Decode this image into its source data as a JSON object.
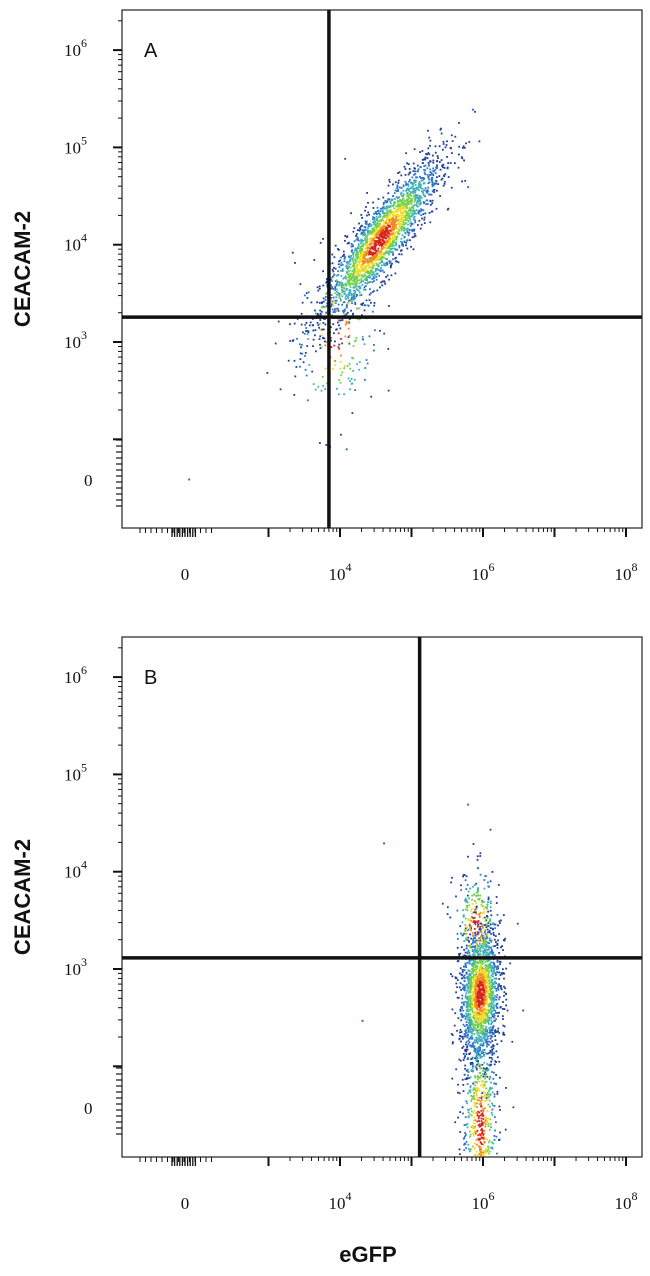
{
  "chart_data": [
    {
      "type": "scatter",
      "panel_label": "A",
      "xlabel": "",
      "ylabel": "CEACAM-2",
      "x_scale": "biexponential",
      "y_scale": "biexponential",
      "x_ticks": [
        {
          "value": 0,
          "base": "0",
          "exp": ""
        },
        {
          "value": 10000,
          "base": "10",
          "exp": "4"
        },
        {
          "value": 1000000,
          "base": "10",
          "exp": "6"
        },
        {
          "value": 100000000,
          "base": "10",
          "exp": "8"
        }
      ],
      "y_ticks": [
        {
          "value": 0,
          "base": "0",
          "exp": ""
        },
        {
          "value": 1000,
          "base": "10",
          "exp": "3"
        },
        {
          "value": 10000,
          "base": "10",
          "exp": "4"
        },
        {
          "value": 100000,
          "base": "10",
          "exp": "5"
        },
        {
          "value": 1000000,
          "base": "10",
          "exp": "6"
        }
      ],
      "gates": {
        "x": 7000,
        "y": 1800
      },
      "populations": [
        {
          "n": 2200,
          "cx": 4.55,
          "cy": 4.05,
          "sx": 0.42,
          "sy": 0.42,
          "corr": 0.88
        },
        {
          "n": 180,
          "cx": 3.95,
          "cy": 3.1,
          "sx": 0.3,
          "sy": 0.5,
          "corr": 0.2
        }
      ],
      "outliers": [
        [
          60,
          4.9
        ],
        [
          700000,
          250000
        ],
        [
          12000,
          100
        ],
        [
          600000,
          40000
        ]
      ],
      "grid": false,
      "legend": "none",
      "colors": [
        "#1f3d99",
        "#2e74c9",
        "#3fb0b8",
        "#72d14a",
        "#f2dc22",
        "#f08a1e",
        "#d8231c"
      ]
    },
    {
      "type": "scatter",
      "panel_label": "B",
      "xlabel": "eGFP",
      "ylabel": "CEACAM-2",
      "x_scale": "biexponential",
      "y_scale": "biexponential",
      "x_ticks": [
        {
          "value": 0,
          "base": "0",
          "exp": ""
        },
        {
          "value": 10000,
          "base": "10",
          "exp": "4"
        },
        {
          "value": 1000000,
          "base": "10",
          "exp": "6"
        },
        {
          "value": 100000000,
          "base": "10",
          "exp": "8"
        }
      ],
      "y_ticks": [
        {
          "value": 0,
          "base": "0",
          "exp": ""
        },
        {
          "value": 1000,
          "base": "10",
          "exp": "3"
        },
        {
          "value": 10000,
          "base": "10",
          "exp": "4"
        },
        {
          "value": 100000,
          "base": "10",
          "exp": "5"
        },
        {
          "value": 1000000,
          "base": "10",
          "exp": "6"
        }
      ],
      "gates": {
        "x": 130000,
        "y": 1300
      },
      "populations": [
        {
          "n": 1700,
          "cx": 5.95,
          "cy": 2.75,
          "sx": 0.14,
          "sy": 0.35,
          "corr": 0.1
        },
        {
          "n": 650,
          "cx": 5.95,
          "cy": 1.4,
          "sx": 0.13,
          "sy": 0.55,
          "corr": 0.0
        },
        {
          "n": 250,
          "cx": 5.9,
          "cy": 3.45,
          "sx": 0.16,
          "sy": 0.3,
          "corr": 0.0
        }
      ],
      "outliers": [
        [
          20000,
          300
        ],
        [
          40000,
          20000
        ],
        [
          600000,
          50000
        ]
      ],
      "grid": false,
      "legend": "none",
      "colors": [
        "#1f3d99",
        "#2e74c9",
        "#3fb0b8",
        "#72d14a",
        "#f2dc22",
        "#f08a1e",
        "#d8231c"
      ]
    }
  ]
}
